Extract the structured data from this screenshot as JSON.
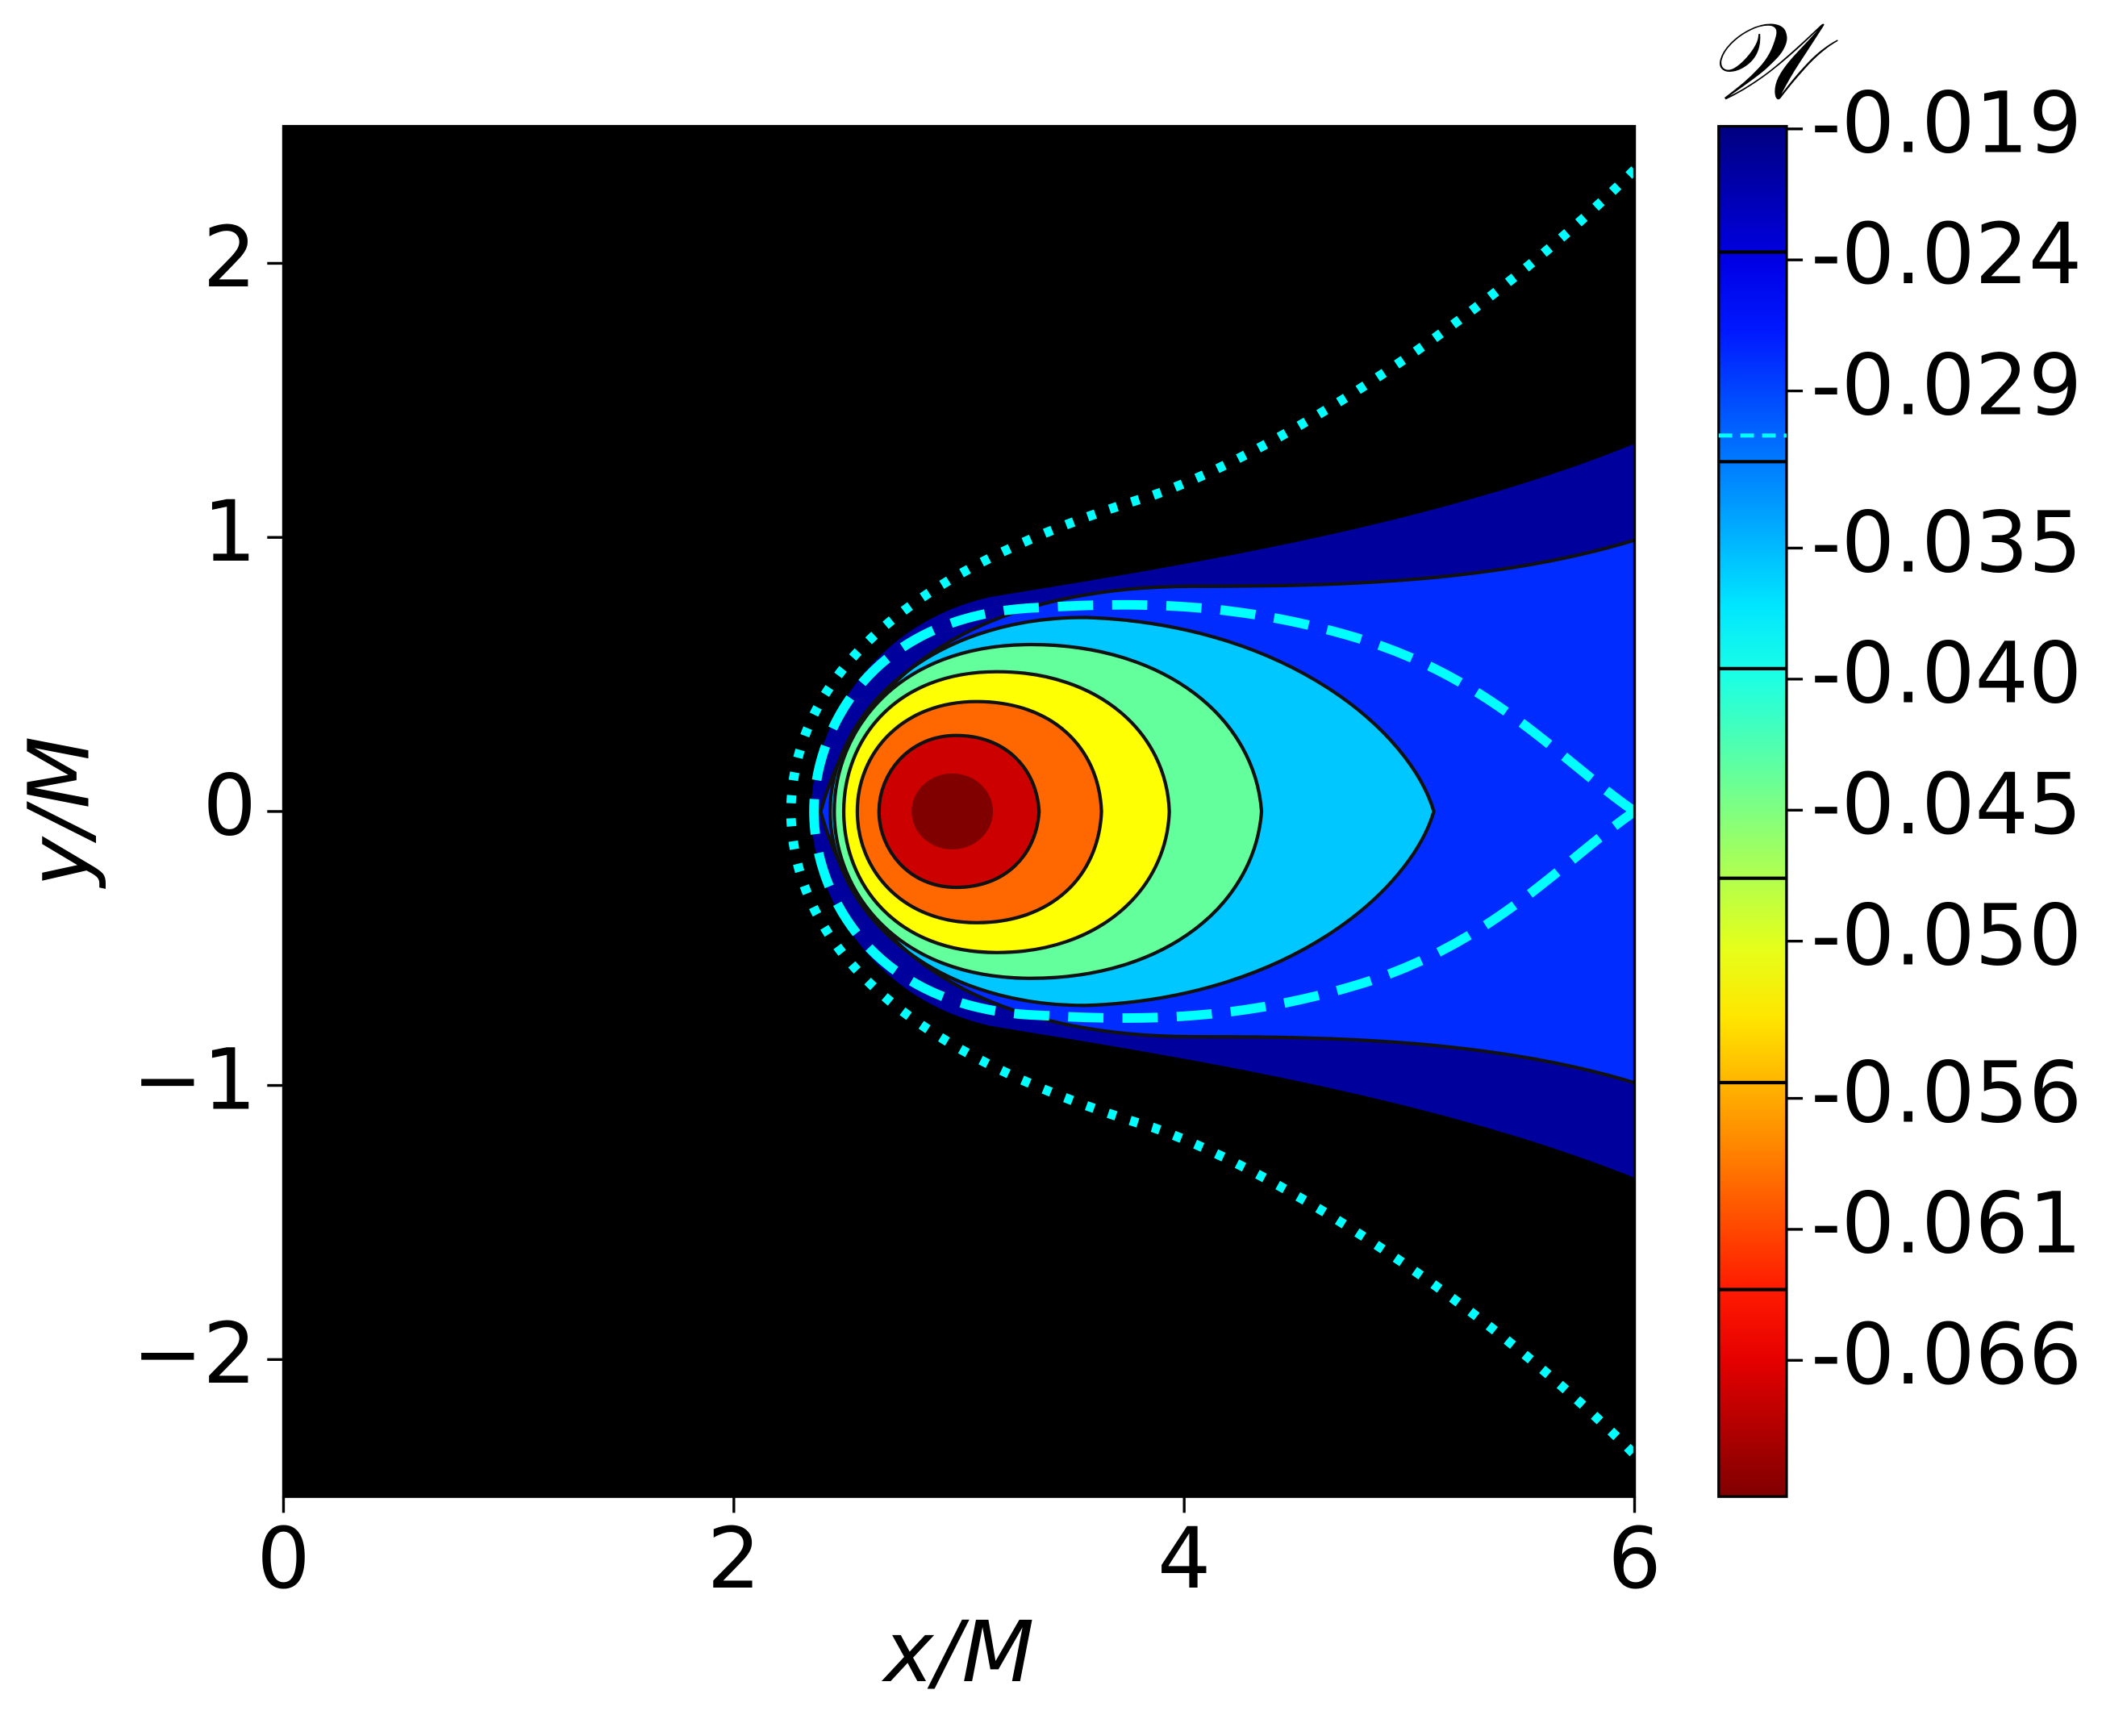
{
  "chart_data": {
    "type": "contour",
    "xlabel": "x/M",
    "ylabel": "y/M",
    "xlim": [
      0,
      6
    ],
    "xticks": [
      0,
      2,
      4,
      6
    ],
    "ylim": [
      -2.5,
      2.5
    ],
    "yticks": [
      {
        "value": -2,
        "label": "−2"
      },
      {
        "value": -1,
        "label": "−1"
      },
      0,
      1,
      2
    ],
    "colorbar": {
      "label": "𝒲",
      "colormap": "jet",
      "lim": [
        -0.0712,
        -0.0189
      ],
      "ticks": [
        -0.019,
        -0.024,
        -0.029,
        -0.035,
        {
          "value": -0.04,
          "label": "-0.040"
        },
        -0.045,
        {
          "value": -0.05,
          "label": "-0.050"
        },
        -0.056,
        -0.061,
        -0.066
      ]
    },
    "levels": [
      -0.0237,
      -0.0317,
      -0.0396,
      -0.0476,
      -0.0554,
      -0.0633
    ],
    "dashed_level": -0.0307
  }
}
